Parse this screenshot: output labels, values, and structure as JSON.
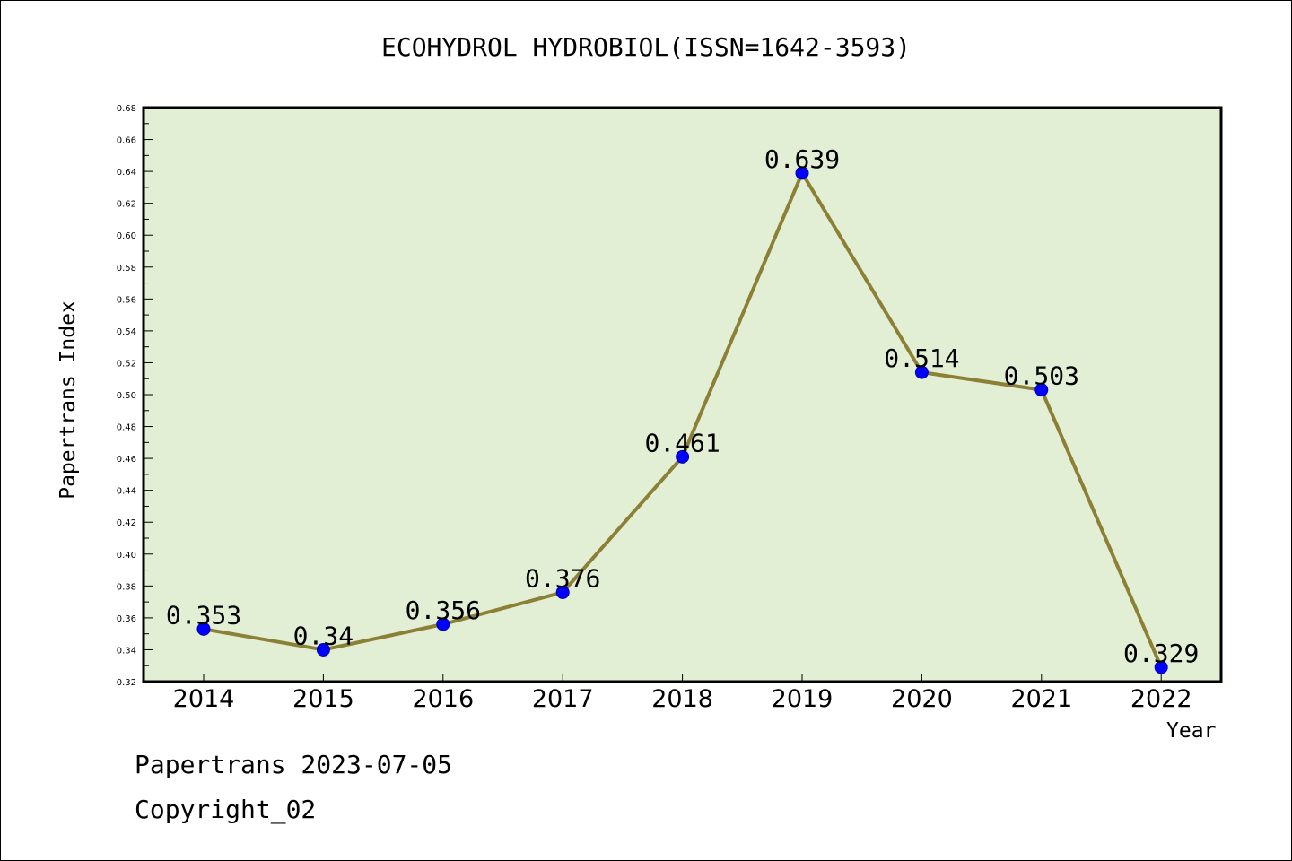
{
  "chart_data": {
    "type": "line",
    "title": "ECOHYDROL HYDROBIOL(ISSN=1642-3593)",
    "xlabel": "Year",
    "ylabel": "Papertrans Index",
    "categories": [
      "2014",
      "2015",
      "2016",
      "2017",
      "2018",
      "2019",
      "2020",
      "2021",
      "2022"
    ],
    "series": [
      {
        "values": [
          0.353,
          0.34,
          0.356,
          0.376,
          0.461,
          0.639,
          0.514,
          0.503,
          0.329
        ],
        "labels": [
          "0.353",
          "0.34",
          "0.356",
          "0.376",
          "0.461",
          "0.639",
          "0.514",
          "0.503",
          "0.329"
        ]
      }
    ],
    "ylim": [
      0.32,
      0.68
    ],
    "yticks": [
      "0.32",
      "0.34",
      "0.36",
      "0.38",
      "0.40",
      "0.42",
      "0.44",
      "0.46",
      "0.48",
      "0.50",
      "0.52",
      "0.54",
      "0.56",
      "0.58",
      "0.60",
      "0.62",
      "0.64",
      "0.66",
      "0.68"
    ],
    "grid": false,
    "legend": "none",
    "colors": {
      "plot_background": "#e2efd5",
      "line": "#8b8035",
      "marker": "#0000ff"
    }
  },
  "footer": {
    "date_line": "Papertrans 2023-07-05",
    "copyright": "Copyright_02"
  }
}
